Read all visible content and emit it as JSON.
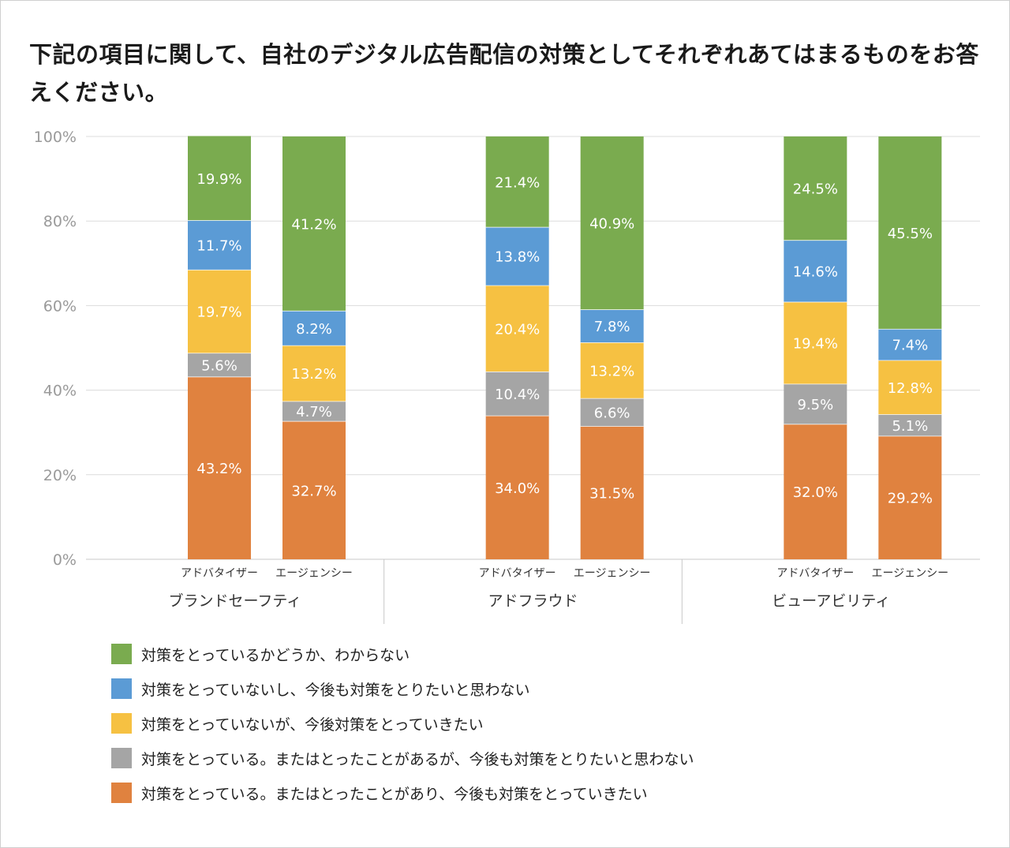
{
  "title": "下記の項目に関して、自社のデジタル広告配信の対策としてそれぞれあてはまるものをお答えください。",
  "chart_data": {
    "type": "bar",
    "stacked": true,
    "title": "下記の項目に関して、自社のデジタル広告配信の対策としてそれぞれあてはまるものをお答えください。",
    "ylim": [
      0,
      100
    ],
    "y_ticks": [
      "0%",
      "20%",
      "40%",
      "60%",
      "80%",
      "100%"
    ],
    "y_tick_values": [
      0,
      20,
      40,
      60,
      80,
      100
    ],
    "grid": true,
    "groups": [
      {
        "label": "ブランドセーフティ",
        "bars": [
          "アドバタイザー",
          "エージェンシー"
        ]
      },
      {
        "label": "アドフラウド",
        "bars": [
          "アドバタイザー",
          "エージェンシー"
        ]
      },
      {
        "label": "ビューアビリティ",
        "bars": [
          "アドバタイザー",
          "エージェンシー"
        ]
      }
    ],
    "series": [
      {
        "name": "対策をとっている。またはとったことがあり、今後も対策をとっていきたい",
        "color": "#E0823F",
        "values": [
          43.2,
          32.7,
          34.0,
          31.5,
          32.0,
          29.2
        ],
        "labels": [
          "43.2%",
          "32.7%",
          "34.0%",
          "31.5%",
          "32.0%",
          "29.2%"
        ]
      },
      {
        "name": "対策をとっている。またはとったことがあるが、今後も対策をとりたいと思わない",
        "color": "#A5A5A5",
        "values": [
          5.6,
          4.7,
          10.4,
          6.6,
          9.5,
          5.1
        ],
        "labels": [
          "5.6%",
          "4.7%",
          "10.4%",
          "6.6%",
          "9.5%",
          "5.1%"
        ]
      },
      {
        "name": "対策をとっていないが、今後対策をとっていきたい",
        "color": "#F6C142",
        "values": [
          19.7,
          13.2,
          20.4,
          13.2,
          19.4,
          12.8
        ],
        "labels": [
          "19.7%",
          "13.2%",
          "20.4%",
          "13.2%",
          "19.4%",
          "12.8%"
        ]
      },
      {
        "name": "対策をとっていないし、今後も対策をとりたいと思わない",
        "color": "#5B9BD5",
        "values": [
          11.7,
          8.2,
          13.8,
          7.8,
          14.6,
          7.4
        ],
        "labels": [
          "11.7%",
          "8.2%",
          "13.8%",
          "7.8%",
          "14.6%",
          "7.4%"
        ]
      },
      {
        "name": "対策をとっているかどうか、わからない",
        "color": "#7AAB4F",
        "values": [
          19.9,
          41.2,
          21.4,
          40.9,
          24.5,
          45.5
        ],
        "labels": [
          "19.9%",
          "41.2%",
          "21.4%",
          "40.9%",
          "24.5%",
          "45.5%"
        ]
      }
    ],
    "legend_order": [
      4,
      3,
      2,
      1,
      0
    ],
    "legend_position": "bottom-left"
  }
}
